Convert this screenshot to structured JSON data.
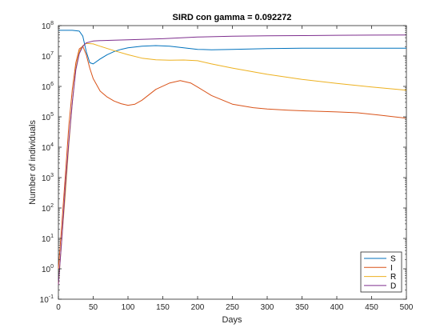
{
  "chart_data": {
    "type": "line",
    "title": "SIRD con gamma = 0.092272",
    "xlabel": "Days",
    "ylabel": "Number of individuals",
    "xlim": [
      0,
      500
    ],
    "ylim": [
      0.1,
      100000000
    ],
    "yscale": "log",
    "x_ticks": [
      0,
      50,
      100,
      150,
      200,
      250,
      300,
      350,
      400,
      450,
      500
    ],
    "x_tick_labels": [
      "0",
      "50",
      "100",
      "150",
      "200",
      "250",
      "300",
      "350",
      "400",
      "450",
      "500"
    ],
    "y_ticks": [
      0.1,
      1,
      10,
      100,
      1000,
      10000,
      100000,
      1000000,
      10000000,
      100000000
    ],
    "y_tick_bases": [
      "10",
      "10",
      "10",
      "10",
      "10",
      "10",
      "10",
      "10",
      "10",
      "10"
    ],
    "y_tick_exponents": [
      "-1",
      "0",
      "1",
      "2",
      "3",
      "4",
      "5",
      "6",
      "7",
      "8"
    ],
    "legend_placement": "bottom-right",
    "grid": false,
    "series": [
      {
        "name": "S",
        "color": "#0072BD",
        "points": [
          [
            0,
            70000000
          ],
          [
            10,
            70000000
          ],
          [
            20,
            70000000
          ],
          [
            30,
            66000000
          ],
          [
            35,
            45000000
          ],
          [
            40,
            14000000
          ],
          [
            45,
            6000000
          ],
          [
            50,
            5500000
          ],
          [
            60,
            8000000
          ],
          [
            70,
            11000000
          ],
          [
            80,
            14000000
          ],
          [
            90,
            16500000
          ],
          [
            100,
            18500000
          ],
          [
            120,
            21000000
          ],
          [
            140,
            22000000
          ],
          [
            160,
            21000000
          ],
          [
            180,
            18500000
          ],
          [
            200,
            16500000
          ],
          [
            220,
            16000000
          ],
          [
            250,
            16500000
          ],
          [
            300,
            17500000
          ],
          [
            350,
            18000000
          ],
          [
            400,
            18000000
          ],
          [
            450,
            18000000
          ],
          [
            500,
            18000000
          ]
        ]
      },
      {
        "name": "I",
        "color": "#D95319",
        "points": [
          [
            0,
            1
          ],
          [
            5,
            30
          ],
          [
            10,
            1200
          ],
          [
            15,
            50000
          ],
          [
            20,
            800000
          ],
          [
            25,
            6000000
          ],
          [
            30,
            17000000
          ],
          [
            35,
            21000000
          ],
          [
            40,
            11000000
          ],
          [
            45,
            4000000
          ],
          [
            50,
            1800000
          ],
          [
            60,
            700000
          ],
          [
            70,
            450000
          ],
          [
            80,
            330000
          ],
          [
            90,
            270000
          ],
          [
            100,
            240000
          ],
          [
            110,
            260000
          ],
          [
            120,
            350000
          ],
          [
            140,
            800000
          ],
          [
            160,
            1300000
          ],
          [
            175,
            1550000
          ],
          [
            190,
            1300000
          ],
          [
            200,
            950000
          ],
          [
            220,
            500000
          ],
          [
            250,
            260000
          ],
          [
            280,
            200000
          ],
          [
            300,
            180000
          ],
          [
            330,
            165000
          ],
          [
            360,
            155000
          ],
          [
            400,
            145000
          ],
          [
            430,
            135000
          ],
          [
            460,
            115000
          ],
          [
            500,
            90000
          ]
        ]
      },
      {
        "name": "R",
        "color": "#EDB120",
        "points": [
          [
            0,
            0.3
          ],
          [
            5,
            10
          ],
          [
            10,
            300
          ],
          [
            15,
            12000
          ],
          [
            20,
            300000
          ],
          [
            25,
            4000000
          ],
          [
            30,
            14000000
          ],
          [
            35,
            22000000
          ],
          [
            40,
            26000000
          ],
          [
            50,
            25000000
          ],
          [
            60,
            21000000
          ],
          [
            80,
            15000000
          ],
          [
            100,
            11000000
          ],
          [
            120,
            8500000
          ],
          [
            140,
            7500000
          ],
          [
            160,
            7300000
          ],
          [
            180,
            7400000
          ],
          [
            200,
            7000000
          ],
          [
            220,
            5500000
          ],
          [
            250,
            4000000
          ],
          [
            300,
            2500000
          ],
          [
            350,
            1700000
          ],
          [
            400,
            1250000
          ],
          [
            450,
            950000
          ],
          [
            500,
            750000
          ]
        ]
      },
      {
        "name": "D",
        "color": "#7E2F8E",
        "points": [
          [
            0,
            0.3
          ],
          [
            5,
            10
          ],
          [
            10,
            500
          ],
          [
            15,
            15000
          ],
          [
            20,
            300000
          ],
          [
            25,
            3500000
          ],
          [
            30,
            12000000
          ],
          [
            35,
            21000000
          ],
          [
            40,
            27000000
          ],
          [
            50,
            31000000
          ],
          [
            60,
            32000000
          ],
          [
            80,
            33000000
          ],
          [
            100,
            34000000
          ],
          [
            150,
            37000000
          ],
          [
            200,
            42000000
          ],
          [
            250,
            45000000
          ],
          [
            300,
            46000000
          ],
          [
            350,
            47000000
          ],
          [
            400,
            48000000
          ],
          [
            450,
            48500000
          ],
          [
            500,
            49000000
          ]
        ]
      }
    ]
  }
}
